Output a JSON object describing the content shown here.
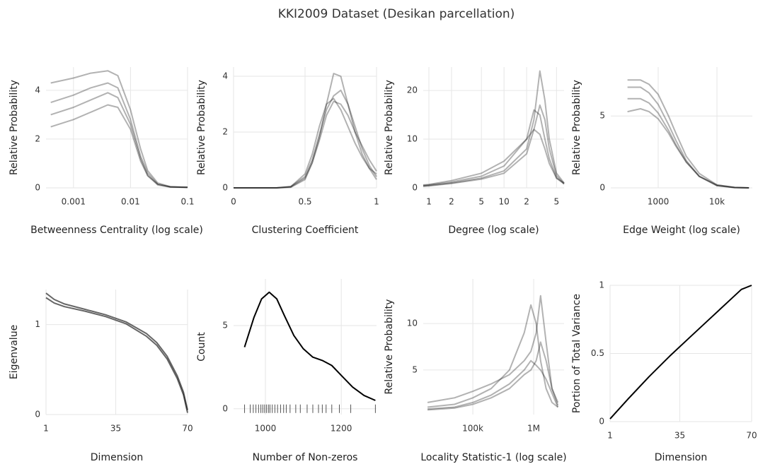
{
  "title": "KKI2009 Dataset (Desikan parcellation)",
  "chart_data": [
    {
      "type": "line",
      "xlabel": "Betweenness Centrality (log scale)",
      "ylabel": "Relative Probability",
      "xscale": "log",
      "grid": true,
      "xlim": [
        0.00033,
        0.1
      ],
      "ylim": [
        0,
        4.95
      ],
      "xticks": [
        0.001,
        0.01,
        0.1
      ],
      "yticks": [
        0,
        2,
        4
      ],
      "x": [
        0.0004,
        0.001,
        0.002,
        0.004,
        0.006,
        0.01,
        0.015,
        0.02,
        0.03,
        0.05,
        0.1
      ],
      "series": [
        {
          "color": "rgba(0,0,0,0.3)",
          "values": [
            4.3,
            4.5,
            4.7,
            4.8,
            4.6,
            3.2,
            1.6,
            0.7,
            0.2,
            0.05,
            0.02
          ]
        },
        {
          "color": "rgba(0,0,0,0.3)",
          "values": [
            3.5,
            3.8,
            4.1,
            4.3,
            4.1,
            2.8,
            1.3,
            0.6,
            0.15,
            0.04,
            0.02
          ]
        },
        {
          "color": "rgba(0,0,0,0.3)",
          "values": [
            3.0,
            3.3,
            3.6,
            3.9,
            3.7,
            2.6,
            1.2,
            0.5,
            0.15,
            0.04,
            0.02
          ]
        },
        {
          "color": "rgba(0,0,0,0.3)",
          "values": [
            2.5,
            2.8,
            3.1,
            3.4,
            3.3,
            2.4,
            1.1,
            0.5,
            0.12,
            0.03,
            0.02
          ]
        }
      ]
    },
    {
      "type": "line",
      "xlabel": "Clustering Coefficient",
      "ylabel": "Relative Probability",
      "xscale": "linear",
      "grid": true,
      "xlim": [
        0,
        1
      ],
      "ylim": [
        0,
        4.33
      ],
      "xticks": [
        0,
        0.5,
        1
      ],
      "yticks": [
        0,
        2,
        4
      ],
      "x": [
        0,
        0.3,
        0.4,
        0.5,
        0.55,
        0.6,
        0.65,
        0.7,
        0.75,
        0.8,
        0.85,
        0.9,
        0.95,
        1
      ],
      "series": [
        {
          "color": "rgba(0,0,0,0.3)",
          "values": [
            0,
            0,
            0.02,
            0.3,
            0.9,
            1.8,
            3.0,
            4.1,
            4.0,
            3.0,
            2.0,
            1.2,
            0.7,
            0.5
          ]
        },
        {
          "color": "rgba(0,0,0,0.3)",
          "values": [
            0,
            0,
            0.05,
            0.4,
            1.0,
            1.9,
            2.8,
            3.3,
            3.5,
            3.0,
            2.2,
            1.4,
            0.8,
            0.4
          ]
        },
        {
          "color": "rgba(0,0,0,0.3)",
          "values": [
            0,
            0,
            0.03,
            0.35,
            0.9,
            1.7,
            2.6,
            3.1,
            3.0,
            2.6,
            2.0,
            1.5,
            1.0,
            0.6
          ]
        },
        {
          "color": "rgba(0,0,0,0.3)",
          "values": [
            0,
            0,
            0.04,
            0.5,
            1.2,
            2.2,
            3.0,
            3.2,
            2.8,
            2.2,
            1.6,
            1.1,
            0.7,
            0.3
          ]
        }
      ]
    },
    {
      "type": "line",
      "xlabel": "Degree (log scale)",
      "ylabel": "Relative Probability",
      "xscale": "log",
      "grid": true,
      "xlim": [
        0.84,
        63
      ],
      "ylim": [
        0,
        24.8
      ],
      "xticks": [
        1,
        2,
        5,
        10,
        {
          "value": 20,
          "label": "2"
        },
        {
          "value": 50,
          "label": "5"
        }
      ],
      "yticks": [
        0,
        10,
        20
      ],
      "x": [
        0.84,
        1,
        2,
        5,
        10,
        20,
        25,
        30,
        35,
        40,
        50,
        63
      ],
      "series": [
        {
          "color": "rgba(0,0,0,0.3)",
          "values": [
            0.4,
            0.5,
            1,
            2,
            3.5,
            8,
            14,
            24,
            18,
            10,
            3,
            1
          ]
        },
        {
          "color": "rgba(0,0,0,0.3)",
          "values": [
            0.5,
            0.6,
            1.2,
            2.4,
            4.5,
            10,
            16,
            15,
            10,
            6,
            2,
            0.8
          ]
        },
        {
          "color": "rgba(0,0,0,0.3)",
          "values": [
            0.6,
            0.7,
            1.5,
            3,
            5.5,
            10,
            12,
            11,
            8,
            5,
            2,
            1
          ]
        },
        {
          "color": "rgba(0,0,0,0.3)",
          "values": [
            0.3,
            0.4,
            0.9,
            1.8,
            3,
            7,
            12,
            17,
            14,
            8,
            2.5,
            0.8
          ]
        }
      ]
    },
    {
      "type": "line",
      "xlabel": "Edge Weight (log scale)",
      "ylabel": "Relative Probability",
      "xscale": "log",
      "grid": true,
      "xlim": [
        156,
        40000
      ],
      "ylim": [
        0,
        8.4
      ],
      "xticks": [
        1000,
        {
          "value": 10000,
          "label": "10k"
        }
      ],
      "yticks": [
        0,
        5
      ],
      "x": [
        300,
        500,
        700,
        1000,
        1500,
        2000,
        3000,
        5000,
        10000,
        20000,
        35000
      ],
      "series": [
        {
          "color": "rgba(0,0,0,0.3)",
          "values": [
            7.5,
            7.5,
            7.2,
            6.5,
            5,
            3.8,
            2.2,
            1.0,
            0.2,
            0.03,
            0
          ]
        },
        {
          "color": "rgba(0,0,0,0.3)",
          "values": [
            7.0,
            7.0,
            6.6,
            5.8,
            4.4,
            3.3,
            1.9,
            0.8,
            0.15,
            0.02,
            0
          ]
        },
        {
          "color": "rgba(0,0,0,0.3)",
          "values": [
            6.2,
            6.2,
            5.9,
            5.2,
            4.0,
            3.0,
            1.8,
            0.8,
            0.15,
            0.02,
            0
          ]
        },
        {
          "color": "rgba(0,0,0,0.3)",
          "values": [
            5.3,
            5.5,
            5.3,
            4.8,
            3.8,
            2.9,
            1.8,
            0.8,
            0.2,
            0.03,
            0
          ]
        }
      ]
    },
    {
      "type": "line",
      "xlabel": "Dimension",
      "ylabel": "Eigenvalue",
      "xscale": "linear",
      "grid": true,
      "xlim": [
        1,
        70
      ],
      "ylim": [
        0,
        1.39
      ],
      "xticks": [
        1,
        35,
        70
      ],
      "yticks": [
        0,
        1
      ],
      "x": [
        1,
        5,
        10,
        20,
        30,
        40,
        50,
        55,
        60,
        65,
        68,
        70
      ],
      "series": [
        {
          "color": "rgba(0,0,0,0.6)",
          "values": [
            1.35,
            1.28,
            1.23,
            1.17,
            1.11,
            1.03,
            0.9,
            0.8,
            0.65,
            0.43,
            0.25,
            0.05
          ]
        },
        {
          "color": "rgba(0,0,0,0.6)",
          "values": [
            1.3,
            1.24,
            1.2,
            1.15,
            1.09,
            1.01,
            0.87,
            0.77,
            0.62,
            0.4,
            0.22,
            0.02
          ]
        }
      ]
    },
    {
      "type": "line",
      "xlabel": "Number of Non-zeros",
      "ylabel": "Count",
      "xscale": "linear",
      "grid": true,
      "xlim": [
        916,
        1293
      ],
      "ylim": [
        -0.35,
        7.8
      ],
      "xticks": [
        1000,
        1200
      ],
      "yticks": [
        0,
        5
      ],
      "x": [
        945,
        970,
        990,
        1010,
        1030,
        1050,
        1075,
        1100,
        1125,
        1150,
        1175,
        1200,
        1230,
        1260,
        1290
      ],
      "series": [
        {
          "color": "#000000",
          "values": [
            3.7,
            5.5,
            6.6,
            7.0,
            6.6,
            5.6,
            4.4,
            3.6,
            3.1,
            2.9,
            2.6,
            2.0,
            1.3,
            0.8,
            0.5
          ]
        }
      ],
      "rug": [
        945,
        960,
        968,
        975,
        982,
        988,
        993,
        998,
        1003,
        1008,
        1012,
        1018,
        1025,
        1032,
        1040,
        1048,
        1055,
        1065,
        1080,
        1092,
        1110,
        1125,
        1140,
        1150,
        1160,
        1175,
        1195,
        1225,
        1290
      ]
    },
    {
      "type": "line",
      "xlabel": "Locality Statistic-1 (log scale)",
      "ylabel": "Relative Probability",
      "xscale": "log",
      "grid": true,
      "xlim": [
        15300,
        3160000
      ],
      "ylim": [
        0.2,
        14.8
      ],
      "xticks": [
        {
          "value": 100000,
          "label": "100k"
        },
        {
          "value": 1000000,
          "label": "1M"
        }
      ],
      "yticks": [
        5,
        10
      ],
      "x": [
        18000,
        50000,
        100000,
        200000,
        400000,
        700000,
        900000,
        1100000,
        1300000,
        1600000,
        2000000,
        2500000
      ],
      "series": [
        {
          "color": "rgba(0,0,0,0.3)",
          "values": [
            1,
            1.3,
            2,
            3,
            5,
            9,
            12,
            10,
            6,
            3,
            1.5,
            1
          ]
        },
        {
          "color": "rgba(0,0,0,0.3)",
          "values": [
            1.5,
            2,
            2.7,
            3.5,
            4.5,
            6,
            7,
            9,
            13,
            8,
            3,
            1.5
          ]
        },
        {
          "color": "rgba(0,0,0,0.3)",
          "values": [
            0.8,
            1,
            1.5,
            2.3,
            3.5,
            5,
            6,
            5.5,
            5,
            4,
            2.5,
            1
          ]
        },
        {
          "color": "rgba(0,0,0,0.3)",
          "values": [
            0.7,
            0.9,
            1.3,
            2,
            3,
            4.5,
            5,
            6,
            8,
            6,
            3,
            1.2
          ]
        }
      ]
    },
    {
      "type": "line",
      "xlabel": "Dimension",
      "ylabel": "Portion of Total Variance",
      "xscale": "linear",
      "grid": true,
      "xlim": [
        1,
        70
      ],
      "ylim": [
        0,
        1
      ],
      "xticks": [
        1,
        35,
        70
      ],
      "yticks": [
        0,
        0.5,
        1
      ],
      "x": [
        1,
        10,
        20,
        30,
        40,
        50,
        60,
        65,
        70
      ],
      "series": [
        {
          "color": "#000000",
          "values": [
            0.02,
            0.17,
            0.33,
            0.48,
            0.62,
            0.76,
            0.9,
            0.97,
            1.0
          ]
        }
      ]
    }
  ]
}
